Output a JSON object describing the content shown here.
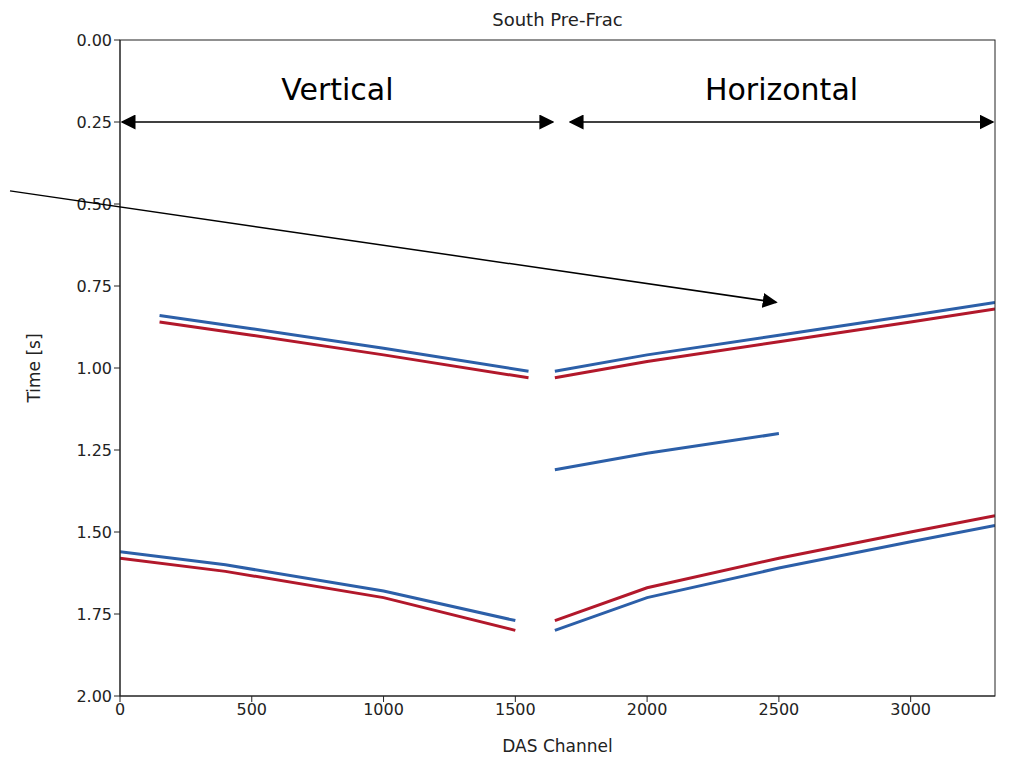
{
  "chart_data": {
    "type": "line",
    "title": "South Pre-Frac",
    "x_label": "DAS Channel",
    "y_label": "Time [s]",
    "xlim": [
      0,
      3320
    ],
    "xticks": [
      0,
      500,
      1000,
      1500,
      2000,
      2500,
      3000
    ],
    "ylim": [
      2.0,
      0.0
    ],
    "yticks": [
      {
        "value": 0,
        "label": "0.00"
      },
      {
        "value": 0.25,
        "label": "0.25"
      },
      {
        "value": 0.5,
        "label": "0.50"
      },
      {
        "value": 0.75,
        "label": "0.75"
      },
      {
        "value": 1.0,
        "label": "1.00"
      },
      {
        "value": 1.25,
        "label": "1.25"
      },
      {
        "value": 1.5,
        "label": "1.50"
      },
      {
        "value": 1.75,
        "label": "1.75"
      },
      {
        "value": 2.0,
        "label": "2.00"
      }
    ],
    "grid": false,
    "annotations": [
      {
        "text": "Vertical",
        "x_range": [
          0,
          1650
        ],
        "y": 0.25
      },
      {
        "text": "Horizontal",
        "x_range": [
          1700,
          3320
        ],
        "y": 0.25
      }
    ],
    "series": [
      {
        "color": "#2c5fa8",
        "x": [
          150,
          500,
          1000,
          1550
        ],
        "values": [
          0.84,
          0.88,
          0.94,
          1.01
        ]
      },
      {
        "color": "#b2182b",
        "x": [
          150,
          500,
          1000,
          1550
        ],
        "values": [
          0.86,
          0.9,
          0.96,
          1.03
        ]
      },
      {
        "color": "#2c5fa8",
        "x": [
          1650,
          2000,
          2500,
          3000,
          3320
        ],
        "values": [
          1.01,
          0.96,
          0.9,
          0.84,
          0.8
        ]
      },
      {
        "color": "#b2182b",
        "x": [
          1650,
          2000,
          2500,
          3000,
          3320
        ],
        "values": [
          1.03,
          0.98,
          0.92,
          0.86,
          0.82
        ]
      },
      {
        "color": "#2c5fa8",
        "x": [
          1650,
          2000,
          2500
        ],
        "values": [
          1.31,
          1.26,
          1.2
        ]
      },
      {
        "color": "#b2182b",
        "x": [
          0,
          400,
          1000,
          1500
        ],
        "values": [
          1.58,
          1.62,
          1.7,
          1.8
        ]
      },
      {
        "color": "#2c5fa8",
        "x": [
          0,
          400,
          1000,
          1500
        ],
        "values": [
          1.56,
          1.6,
          1.68,
          1.77
        ]
      },
      {
        "color": "#b2182b",
        "x": [
          1650,
          2000,
          2500,
          3000,
          3320
        ],
        "values": [
          1.77,
          1.67,
          1.58,
          1.5,
          1.45
        ]
      },
      {
        "color": "#2c5fa8",
        "x": [
          1650,
          2000,
          2500,
          3000,
          3320
        ],
        "values": [
          1.8,
          1.7,
          1.61,
          1.53,
          1.48
        ]
      }
    ]
  }
}
